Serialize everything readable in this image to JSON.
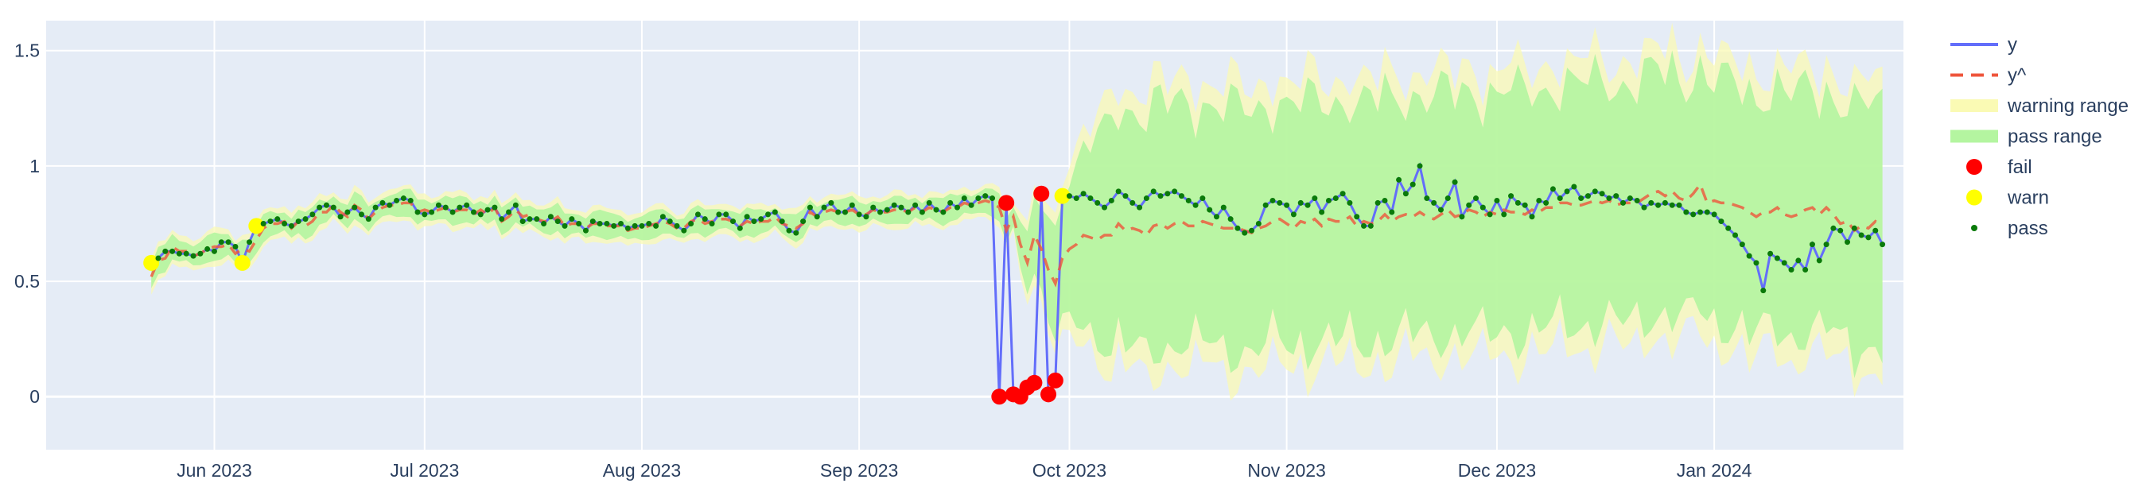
{
  "chart_data": {
    "type": "line",
    "title": "",
    "xlabel": "",
    "ylabel": "",
    "x_range": [
      "2023-05-08",
      "2024-01-28"
    ],
    "y_range": [
      -0.23,
      1.63
    ],
    "x_ticks": [
      {
        "date": "2023-06-01",
        "label": "Jun 2023"
      },
      {
        "date": "2023-07-01",
        "label": "Jul 2023"
      },
      {
        "date": "2023-08-01",
        "label": "Aug 2023"
      },
      {
        "date": "2023-09-01",
        "label": "Sep 2023"
      },
      {
        "date": "2023-10-01",
        "label": "Oct 2023"
      },
      {
        "date": "2023-11-01",
        "label": "Nov 2023"
      },
      {
        "date": "2023-12-01",
        "label": "Dec 2023"
      },
      {
        "date": "2024-01-01",
        "label": "Jan 2024"
      }
    ],
    "y_ticks": [
      {
        "value": 0,
        "label": "0"
      },
      {
        "value": 0.5,
        "label": "0.5"
      },
      {
        "value": 1,
        "label": "1"
      },
      {
        "value": 1.5,
        "label": "1.5"
      }
    ],
    "grid": true,
    "legend_position": "right",
    "legend": [
      {
        "name": "y",
        "kind": "line",
        "color": "#636efa"
      },
      {
        "name": "y^",
        "kind": "dash",
        "color": "#ef553b"
      },
      {
        "name": "warning range",
        "kind": "fill",
        "color": "#fafab4"
      },
      {
        "name": "pass range",
        "kind": "fill",
        "color": "#b4f5a0"
      },
      {
        "name": "fail",
        "kind": "marker",
        "color": "#ff0000"
      },
      {
        "name": "warn",
        "kind": "marker",
        "color": "#ffff00"
      },
      {
        "name": "pass",
        "kind": "dot",
        "color": "#0a7a0a"
      }
    ],
    "colors": {
      "plot_bg": "#e5ecf6",
      "grid": "#ffffff",
      "y_line": "#636efa",
      "yhat_line": "#ef553b",
      "warning_fill": "#fafab4",
      "pass_fill": "#b4f5a0",
      "fail_marker": "#ff0000",
      "warn_marker": "#ffff00",
      "pass_marker": "#0a7a0a"
    },
    "series": {
      "x_start": "2023-05-23",
      "y": [
        0.58,
        0.6,
        0.63,
        0.63,
        0.62,
        0.62,
        0.61,
        0.62,
        0.64,
        0.63,
        0.67,
        0.67,
        0.65,
        0.58,
        0.67,
        0.74,
        0.75,
        0.76,
        0.77,
        0.75,
        0.74,
        0.76,
        0.77,
        0.79,
        0.82,
        0.83,
        0.82,
        0.78,
        0.8,
        0.82,
        0.79,
        0.77,
        0.82,
        0.84,
        0.83,
        0.85,
        0.86,
        0.85,
        0.8,
        0.79,
        0.8,
        0.83,
        0.82,
        0.8,
        0.82,
        0.83,
        0.8,
        0.79,
        0.81,
        0.82,
        0.77,
        0.8,
        0.83,
        0.76,
        0.77,
        0.77,
        0.75,
        0.78,
        0.76,
        0.74,
        0.77,
        0.75,
        0.72,
        0.76,
        0.75,
        0.75,
        0.74,
        0.75,
        0.73,
        0.74,
        0.74,
        0.75,
        0.74,
        0.78,
        0.76,
        0.74,
        0.72,
        0.75,
        0.79,
        0.77,
        0.75,
        0.79,
        0.79,
        0.76,
        0.73,
        0.78,
        0.76,
        0.77,
        0.79,
        0.8,
        0.76,
        0.72,
        0.71,
        0.76,
        0.82,
        0.78,
        0.82,
        0.84,
        0.8,
        0.8,
        0.83,
        0.79,
        0.78,
        0.82,
        0.8,
        0.81,
        0.83,
        0.82,
        0.8,
        0.83,
        0.8,
        0.84,
        0.81,
        0.8,
        0.84,
        0.82,
        0.86,
        0.83,
        0.86,
        0.87,
        0.86,
        0.0,
        0.84,
        0.01,
        0.0,
        0.04,
        0.06,
        0.88,
        0.01,
        0.07,
        0.87,
        0.87,
        0.86,
        0.88,
        0.86,
        0.84,
        0.82,
        0.85,
        0.89,
        0.87,
        0.84,
        0.82,
        0.86,
        0.89,
        0.87,
        0.88,
        0.89,
        0.87,
        0.85,
        0.83,
        0.86,
        0.81,
        0.78,
        0.82,
        0.77,
        0.73,
        0.71,
        0.72,
        0.75,
        0.83,
        0.85,
        0.84,
        0.83,
        0.79,
        0.84,
        0.83,
        0.86,
        0.8,
        0.85,
        0.86,
        0.88,
        0.84,
        0.78,
        0.74,
        0.74,
        0.84,
        0.85,
        0.8,
        0.94,
        0.88,
        0.92,
        1.0,
        0.86,
        0.84,
        0.81,
        0.86,
        0.93,
        0.78,
        0.83,
        0.86,
        0.82,
        0.79,
        0.85,
        0.79,
        0.87,
        0.84,
        0.83,
        0.78,
        0.85,
        0.84,
        0.9,
        0.86,
        0.89,
        0.91,
        0.86,
        0.87,
        0.89,
        0.88,
        0.86,
        0.87,
        0.84,
        0.86,
        0.85,
        0.82,
        0.84,
        0.83,
        0.84,
        0.83,
        0.83,
        0.8,
        0.79,
        0.8,
        0.8,
        0.79,
        0.76,
        0.73,
        0.7,
        0.66,
        0.61,
        0.58,
        0.46,
        0.62,
        0.6,
        0.58,
        0.55,
        0.59,
        0.55,
        0.66,
        0.59,
        0.66,
        0.73,
        0.72,
        0.67,
        0.73,
        0.7,
        0.69,
        0.72,
        0.66
      ],
      "yhat": [
        0.52,
        0.59,
        0.6,
        0.65,
        0.63,
        0.63,
        0.61,
        0.62,
        0.64,
        0.65,
        0.65,
        0.66,
        0.62,
        0.64,
        0.63,
        0.68,
        0.73,
        0.75,
        0.75,
        0.76,
        0.73,
        0.76,
        0.74,
        0.76,
        0.8,
        0.8,
        0.83,
        0.8,
        0.78,
        0.83,
        0.81,
        0.77,
        0.8,
        0.82,
        0.83,
        0.83,
        0.84,
        0.84,
        0.8,
        0.81,
        0.8,
        0.81,
        0.82,
        0.8,
        0.81,
        0.81,
        0.79,
        0.81,
        0.79,
        0.82,
        0.76,
        0.78,
        0.81,
        0.78,
        0.79,
        0.77,
        0.76,
        0.76,
        0.78,
        0.74,
        0.75,
        0.75,
        0.73,
        0.75,
        0.75,
        0.74,
        0.74,
        0.74,
        0.72,
        0.73,
        0.73,
        0.74,
        0.75,
        0.76,
        0.75,
        0.73,
        0.73,
        0.76,
        0.77,
        0.75,
        0.76,
        0.77,
        0.77,
        0.76,
        0.74,
        0.76,
        0.75,
        0.76,
        0.76,
        0.78,
        0.75,
        0.74,
        0.73,
        0.75,
        0.8,
        0.78,
        0.8,
        0.81,
        0.8,
        0.8,
        0.81,
        0.79,
        0.79,
        0.81,
        0.8,
        0.8,
        0.81,
        0.81,
        0.8,
        0.82,
        0.8,
        0.82,
        0.81,
        0.8,
        0.82,
        0.82,
        0.84,
        0.83,
        0.84,
        0.85,
        0.84,
        0.82,
        0.72,
        0.78,
        0.66,
        0.58,
        0.7,
        0.64,
        0.55,
        0.49,
        0.6,
        0.64,
        0.66,
        0.7,
        0.69,
        0.68,
        0.7,
        0.7,
        0.75,
        0.72,
        0.73,
        0.72,
        0.7,
        0.74,
        0.75,
        0.73,
        0.75,
        0.76,
        0.74,
        0.74,
        0.76,
        0.75,
        0.74,
        0.73,
        0.73,
        0.73,
        0.72,
        0.71,
        0.73,
        0.74,
        0.76,
        0.77,
        0.75,
        0.73,
        0.76,
        0.75,
        0.77,
        0.74,
        0.77,
        0.76,
        0.76,
        0.78,
        0.74,
        0.76,
        0.75,
        0.76,
        0.79,
        0.76,
        0.78,
        0.79,
        0.78,
        0.8,
        0.78,
        0.77,
        0.79,
        0.81,
        0.78,
        0.79,
        0.81,
        0.8,
        0.78,
        0.8,
        0.79,
        0.81,
        0.8,
        0.8,
        0.79,
        0.81,
        0.8,
        0.82,
        0.82,
        0.84,
        0.84,
        0.83,
        0.83,
        0.84,
        0.85,
        0.84,
        0.85,
        0.83,
        0.84,
        0.84,
        0.84,
        0.86,
        0.88,
        0.89,
        0.87,
        0.89,
        0.86,
        0.85,
        0.88,
        0.92,
        0.84,
        0.85,
        0.84,
        0.84,
        0.83,
        0.82,
        0.8,
        0.78,
        0.8,
        0.8,
        0.82,
        0.79,
        0.78,
        0.79,
        0.81,
        0.82,
        0.79,
        0.82,
        0.79,
        0.75,
        0.76,
        0.72,
        0.74,
        0.73,
        0.76,
        0.74
      ]
    }
  }
}
